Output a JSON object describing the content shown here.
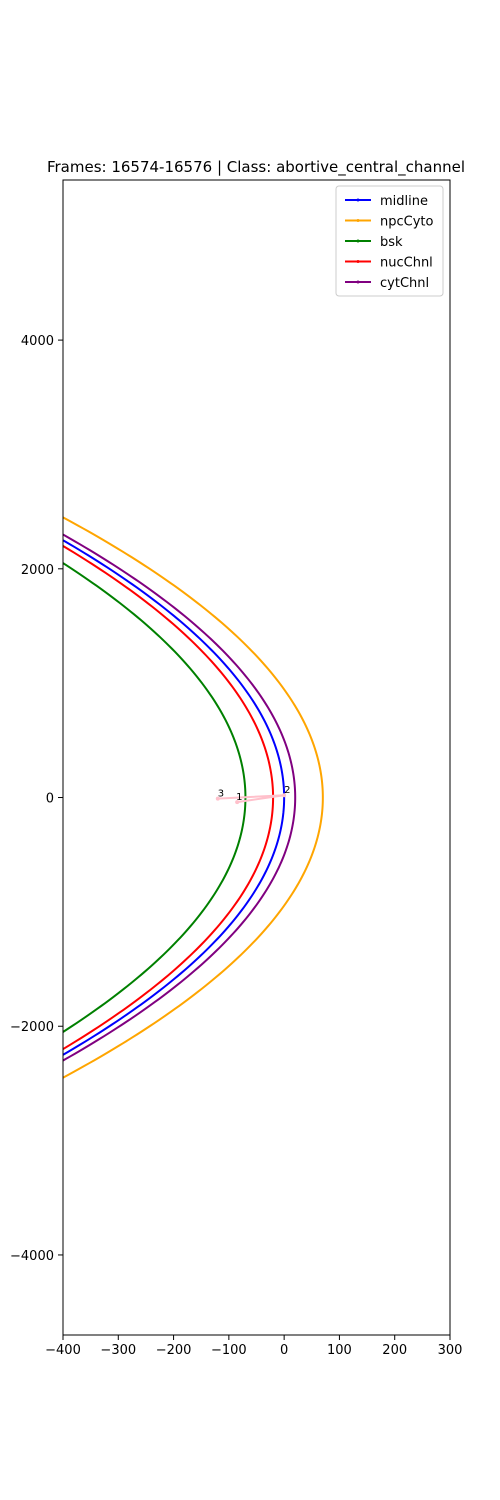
{
  "chart_data": {
    "type": "line",
    "title": "Frames: 16574-16576 | Class: abortive_central_channel",
    "xlabel": "",
    "ylabel": "",
    "xlim": [
      -400,
      300
    ],
    "ylim": [
      -4700,
      5400
    ],
    "x_ticks": [
      -400,
      -300,
      -200,
      -100,
      0,
      100,
      200,
      300
    ],
    "y_ticks": [
      -4000,
      -2000,
      0,
      2000,
      4000
    ],
    "x_tick_labels": [
      "−400",
      "−300",
      "−200",
      "−100",
      "0",
      "100",
      "200",
      "300"
    ],
    "y_tick_labels": [
      "−4000",
      "−2000",
      "0",
      "2000",
      "4000"
    ],
    "grid": false,
    "legend_position": "upper-right",
    "series": [
      {
        "name": "midline",
        "color": "#0000ff",
        "vertex_x": 0,
        "x_at_y_2250": -400
      },
      {
        "name": "npcCyto",
        "color": "#ffa500",
        "vertex_x": 70,
        "x_at_y_2450": -400
      },
      {
        "name": "bsk",
        "color": "#008000",
        "vertex_x": -70,
        "x_at_y_2050": -400
      },
      {
        "name": "nucChnl",
        "color": "#ff0000",
        "vertex_x": -20,
        "x_at_y_2200": -400
      },
      {
        "name": "cytChnl",
        "color": "#800080",
        "vertex_x": 20,
        "x_at_y_2300": -400
      }
    ],
    "trajectory": {
      "color": "#ffc0cb",
      "points": [
        {
          "label": "1",
          "x": -85,
          "y": -40
        },
        {
          "label": "2",
          "x": 0,
          "y": 20
        },
        {
          "label": "3",
          "x": -120,
          "y": -10
        }
      ]
    }
  }
}
